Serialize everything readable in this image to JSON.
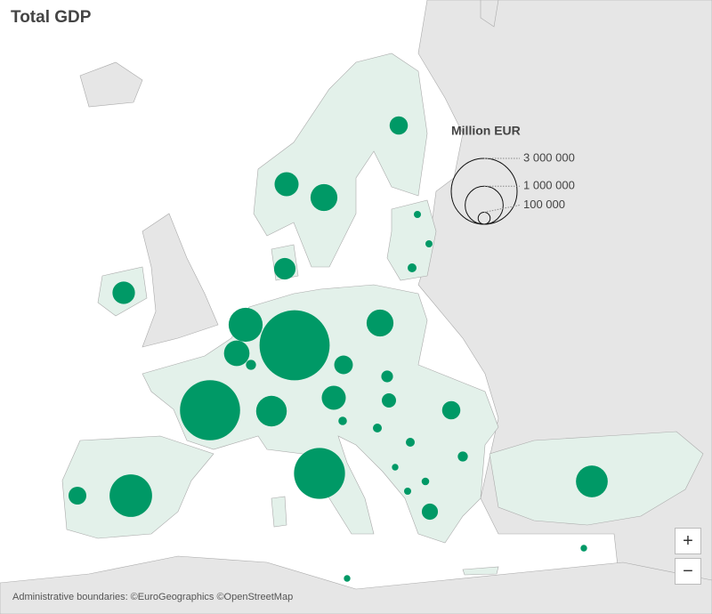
{
  "chart_data": {
    "type": "bubble_map",
    "title": "Total GDP",
    "color": "#009966",
    "values": [
      3400000,
      2500000,
      1800000,
      1250000,
      800000,
      500000,
      500000,
      450000,
      650000,
      350000,
      400000,
      400000,
      320000,
      700000,
      220000,
      230000,
      240000,
      230000,
      180000,
      140000,
      95000,
      70000,
      55000,
      55000,
      55000,
      35000,
      35000,
      70000,
      50000,
      30000,
      40000,
      35000,
      30000,
      30000
    ],
    "legend": {
      "title": "Million EUR",
      "sizes": [
        {
          "value": 3000000,
          "label": "3 000 000"
        },
        {
          "value": 1000000,
          "label": "1 000 000"
        },
        {
          "value": 100000,
          "label": "100 000"
        }
      ]
    },
    "attribution": "Administrative boundaries: ©EuroGeographics ©OpenStreetMap",
    "zoom": {
      "in": "+",
      "out": "−"
    }
  }
}
